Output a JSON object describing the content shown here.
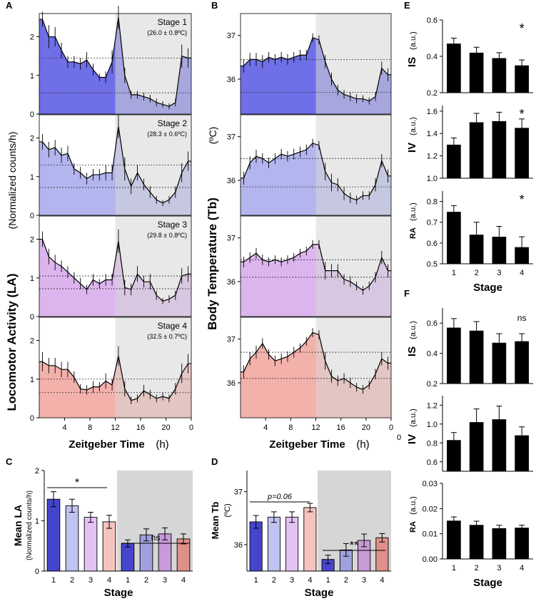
{
  "panel_labels": [
    "A",
    "B",
    "C",
    "D",
    "E",
    "F"
  ],
  "colors": {
    "stages": [
      "#6f6fe8",
      "#b3b5ee",
      "#dcb5ee",
      "#f3b1ab"
    ],
    "bars_c": [
      "#5a5ad8",
      "#c0c2f2",
      "#e3c3f3",
      "#f5c3bd"
    ],
    "bars_dark": [
      "#4545cc",
      "#9fa0dd",
      "#c79ad8",
      "#e0908a"
    ],
    "night": "#d6d6d6",
    "black": "#000000"
  },
  "chart_data": [
    {
      "id": "A",
      "type": "line",
      "title": "Locomotor Activity",
      "ylabel": "Locomotor Activity (LA)",
      "ylabel_units": "(Normalized counts/h)",
      "xlabel": "Zeitgeber Time",
      "xlabel_units": "(h)",
      "xticks": [
        "4",
        "8",
        "12",
        "16",
        "20",
        "0"
      ],
      "ylim": [
        0,
        2.6
      ],
      "yticks": [
        "0",
        "1",
        "2"
      ],
      "night_start": 12,
      "series": [
        {
          "name": "Stage 1",
          "temp": "(26.0 ± 0.8ºC)",
          "means_dotted": [
            1.45,
            0.55
          ],
          "x": [
            0.5,
            1.5,
            2.5,
            3.5,
            4.5,
            5.5,
            6.5,
            7.5,
            8.5,
            9.5,
            10.5,
            11.5,
            12.5,
            13.5,
            14.5,
            15.5,
            16.5,
            17.5,
            18.5,
            19.5,
            20.5,
            21.5,
            22.5,
            23.5
          ],
          "values": [
            2.45,
            2.0,
            2.0,
            1.65,
            1.35,
            1.35,
            1.3,
            1.4,
            1.15,
            0.95,
            0.95,
            1.35,
            2.5,
            1.0,
            0.5,
            0.5,
            0.45,
            0.4,
            0.3,
            0.25,
            0.2,
            0.3,
            1.5,
            1.45
          ],
          "err": [
            0.2,
            0.3,
            0.25,
            0.2,
            0.15,
            0.15,
            0.15,
            0.2,
            0.15,
            0.1,
            0.15,
            0.3,
            0.3,
            0.2,
            0.1,
            0.1,
            0.1,
            0.1,
            0.1,
            0.08,
            0.08,
            0.1,
            0.3,
            0.25
          ]
        },
        {
          "name": "Stage 2",
          "temp": "(28.3 ± 0.6ºC)",
          "means_dotted": [
            1.3,
            0.72
          ],
          "x": [
            0.5,
            1.5,
            2.5,
            3.5,
            4.5,
            5.5,
            6.5,
            7.5,
            8.5,
            9.5,
            10.5,
            11.5,
            12.5,
            13.5,
            14.5,
            15.5,
            16.5,
            17.5,
            18.5,
            19.5,
            20.5,
            21.5,
            22.5,
            23.5
          ],
          "values": [
            1.9,
            1.7,
            1.75,
            1.55,
            1.6,
            1.2,
            1.1,
            0.95,
            1.05,
            1.05,
            1.1,
            1.1,
            2.3,
            1.2,
            0.75,
            1.1,
            0.8,
            0.6,
            0.4,
            0.32,
            0.4,
            0.6,
            1.1,
            1.4
          ],
          "err": [
            0.2,
            0.2,
            0.2,
            0.2,
            0.2,
            0.15,
            0.15,
            0.15,
            0.15,
            0.15,
            0.2,
            0.2,
            0.3,
            0.3,
            0.2,
            0.2,
            0.15,
            0.15,
            0.1,
            0.08,
            0.1,
            0.15,
            0.25,
            0.25
          ]
        },
        {
          "name": "Stage 3",
          "temp": "(29.8 ± 0.8ºC)",
          "means_dotted": [
            1.05,
            0.72
          ],
          "x": [
            0.5,
            1.5,
            2.5,
            3.5,
            4.5,
            5.5,
            6.5,
            7.5,
            8.5,
            9.5,
            10.5,
            11.5,
            12.5,
            13.5,
            14.5,
            15.5,
            16.5,
            17.5,
            18.5,
            19.5,
            20.5,
            21.5,
            22.5,
            23.5
          ],
          "values": [
            2.0,
            1.55,
            1.4,
            1.3,
            1.15,
            1.0,
            0.85,
            0.7,
            0.95,
            0.85,
            0.95,
            0.95,
            1.95,
            0.75,
            0.7,
            1.1,
            0.9,
            0.9,
            0.55,
            0.4,
            0.45,
            0.55,
            1.05,
            1.1
          ],
          "err": [
            0.2,
            0.2,
            0.2,
            0.15,
            0.15,
            0.15,
            0.15,
            0.12,
            0.15,
            0.12,
            0.15,
            0.15,
            0.3,
            0.2,
            0.15,
            0.2,
            0.15,
            0.2,
            0.12,
            0.08,
            0.1,
            0.12,
            0.2,
            0.2
          ]
        },
        {
          "name": "Stage 4",
          "temp": "(32.5 ± 0.7ºC)",
          "means_dotted": [
            1.0,
            0.65
          ],
          "x": [
            0.5,
            1.5,
            2.5,
            3.5,
            4.5,
            5.5,
            6.5,
            7.5,
            8.5,
            9.5,
            10.5,
            11.5,
            12.5,
            13.5,
            14.5,
            15.5,
            16.5,
            17.5,
            18.5,
            19.5,
            20.5,
            21.5,
            22.5,
            23.5
          ],
          "values": [
            1.45,
            1.35,
            1.35,
            1.25,
            1.25,
            1.05,
            0.75,
            0.72,
            0.8,
            0.8,
            0.95,
            0.85,
            1.6,
            0.75,
            0.45,
            0.5,
            0.7,
            0.6,
            0.5,
            0.55,
            0.5,
            0.75,
            1.15,
            1.4
          ],
          "err": [
            0.25,
            0.2,
            0.2,
            0.2,
            0.2,
            0.15,
            0.12,
            0.12,
            0.15,
            0.12,
            0.2,
            0.15,
            0.25,
            0.2,
            0.1,
            0.1,
            0.15,
            0.12,
            0.1,
            0.1,
            0.1,
            0.15,
            0.25,
            0.25
          ]
        }
      ]
    },
    {
      "id": "B",
      "type": "line",
      "title": "Body Temperature",
      "ylabel": "Body Temperature (Tb)",
      "ylabel_units": "(ºC)",
      "xlabel": "Zeitgeber Time",
      "xlabel_units": "(h)",
      "xticks": [
        "4",
        "8",
        "12",
        "16",
        "20",
        "0"
      ],
      "ylim": [
        35.2,
        37.5
      ],
      "yticks": [
        "36",
        "37"
      ],
      "night_start": 12,
      "series": [
        {
          "name": "Stage 1",
          "means_dotted": [
            36.45,
            35.7
          ],
          "x": [
            0.5,
            1.5,
            2.5,
            3.5,
            4.5,
            5.5,
            6.5,
            7.5,
            8.5,
            9.5,
            10.5,
            11.5,
            12.5,
            13.5,
            14.5,
            15.5,
            16.5,
            17.5,
            18.5,
            19.5,
            20.5,
            21.5,
            22.5,
            23.5
          ],
          "values": [
            36.3,
            36.45,
            36.45,
            36.4,
            36.5,
            36.45,
            36.5,
            36.45,
            36.5,
            36.55,
            36.55,
            36.95,
            36.9,
            36.4,
            36.0,
            35.75,
            35.65,
            35.6,
            35.55,
            35.55,
            35.5,
            35.6,
            36.25,
            36.1
          ],
          "err": [
            0.15,
            0.15,
            0.15,
            0.15,
            0.12,
            0.12,
            0.12,
            0.12,
            0.12,
            0.12,
            0.12,
            0.1,
            0.1,
            0.15,
            0.15,
            0.12,
            0.1,
            0.1,
            0.1,
            0.08,
            0.08,
            0.1,
            0.15,
            0.15
          ]
        },
        {
          "name": "Stage 2",
          "means_dotted": [
            36.5,
            35.85
          ],
          "x": [
            0.5,
            1.5,
            2.5,
            3.5,
            4.5,
            5.5,
            6.5,
            7.5,
            8.5,
            9.5,
            10.5,
            11.5,
            12.5,
            13.5,
            14.5,
            15.5,
            16.5,
            17.5,
            18.5,
            19.5,
            20.5,
            21.5,
            22.5,
            23.5
          ],
          "values": [
            36.05,
            36.4,
            36.55,
            36.5,
            36.4,
            36.5,
            36.6,
            36.55,
            36.6,
            36.65,
            36.7,
            36.85,
            36.8,
            36.2,
            35.95,
            35.9,
            35.7,
            35.6,
            35.55,
            35.65,
            35.65,
            35.9,
            36.45,
            36.1
          ],
          "err": [
            0.15,
            0.15,
            0.15,
            0.12,
            0.12,
            0.12,
            0.12,
            0.12,
            0.12,
            0.12,
            0.12,
            0.1,
            0.1,
            0.2,
            0.2,
            0.15,
            0.15,
            0.12,
            0.1,
            0.1,
            0.1,
            0.15,
            0.15,
            0.15
          ]
        },
        {
          "name": "Stage 3",
          "means_dotted": [
            36.5,
            36.1
          ],
          "x": [
            0.5,
            1.5,
            2.5,
            3.5,
            4.5,
            5.5,
            6.5,
            7.5,
            8.5,
            9.5,
            10.5,
            11.5,
            12.5,
            13.5,
            14.5,
            15.5,
            16.5,
            17.5,
            18.5,
            19.5,
            20.5,
            21.5,
            22.5,
            23.5
          ],
          "values": [
            36.45,
            36.55,
            36.65,
            36.5,
            36.45,
            36.5,
            36.45,
            36.5,
            36.55,
            36.65,
            36.7,
            36.85,
            36.85,
            36.25,
            36.25,
            36.25,
            36.05,
            36.0,
            35.9,
            35.8,
            35.9,
            36.1,
            36.55,
            36.25
          ],
          "err": [
            0.12,
            0.12,
            0.12,
            0.12,
            0.1,
            0.1,
            0.1,
            0.1,
            0.1,
            0.1,
            0.1,
            0.1,
            0.1,
            0.2,
            0.15,
            0.15,
            0.12,
            0.12,
            0.1,
            0.1,
            0.1,
            0.12,
            0.15,
            0.15
          ]
        },
        {
          "name": "Stage 4",
          "means_dotted": [
            36.7,
            36.1
          ],
          "x": [
            0.5,
            1.5,
            2.5,
            3.5,
            4.5,
            5.5,
            6.5,
            7.5,
            8.5,
            9.5,
            10.5,
            11.5,
            12.5,
            13.5,
            14.5,
            15.5,
            16.5,
            17.5,
            18.5,
            19.5,
            20.5,
            21.5,
            22.5,
            23.5
          ],
          "values": [
            36.25,
            36.55,
            36.7,
            36.9,
            36.65,
            36.5,
            36.55,
            36.6,
            36.7,
            36.8,
            36.95,
            37.15,
            37.1,
            36.5,
            36.15,
            36.05,
            36.1,
            36.0,
            35.9,
            35.85,
            35.95,
            36.2,
            36.55,
            36.45
          ],
          "err": [
            0.15,
            0.15,
            0.15,
            0.12,
            0.12,
            0.12,
            0.12,
            0.12,
            0.12,
            0.1,
            0.1,
            0.1,
            0.1,
            0.2,
            0.15,
            0.12,
            0.12,
            0.12,
            0.1,
            0.1,
            0.1,
            0.12,
            0.15,
            0.15
          ]
        }
      ]
    },
    {
      "id": "C",
      "type": "bar",
      "ylabel": "Mean LA",
      "ylabel_units": "(Normalized counts/h)",
      "xlabel": "Stage",
      "categories": [
        "1",
        "2",
        "3",
        "4",
        "1",
        "2",
        "3",
        "4"
      ],
      "values": [
        1.43,
        1.3,
        1.07,
        0.98,
        0.55,
        0.72,
        0.74,
        0.64
      ],
      "err": [
        0.15,
        0.13,
        0.1,
        0.13,
        0.07,
        0.12,
        0.12,
        0.1
      ],
      "ylim": [
        0,
        2.0
      ],
      "yticks": [
        "0",
        "1",
        "2"
      ],
      "annotations": [
        "*",
        "ns"
      ]
    },
    {
      "id": "D",
      "type": "bar",
      "ylabel": "Mean Tb",
      "ylabel_units": "(ºC)",
      "xlabel": "Stage",
      "categories": [
        "1",
        "2",
        "3",
        "4",
        "1",
        "2",
        "3",
        "4"
      ],
      "values": [
        36.43,
        36.52,
        36.52,
        36.7,
        35.72,
        35.9,
        36.08,
        36.13
      ],
      "err": [
        0.12,
        0.1,
        0.1,
        0.08,
        0.08,
        0.12,
        0.12,
        0.08
      ],
      "ylim": [
        35.5,
        37.4
      ],
      "yticks": [
        "36",
        "37"
      ],
      "annotations": [
        "p=0.06",
        "**"
      ]
    },
    {
      "id": "E",
      "type": "bar",
      "xlabel": "Stage",
      "categories": [
        "1",
        "2",
        "3",
        "4"
      ],
      "subplots": [
        {
          "label": "IS",
          "units": "(a.u.)",
          "ylim": [
            0.2,
            0.6
          ],
          "yticks": [
            "0.2",
            "0.4",
            "0.6"
          ],
          "values": [
            0.47,
            0.42,
            0.39,
            0.35
          ],
          "err": [
            0.03,
            0.03,
            0.03,
            0.03
          ],
          "annotation": "*"
        },
        {
          "label": "IV",
          "units": "(a.u.)",
          "ylim": [
            1.0,
            1.65
          ],
          "yticks": [
            "1.0",
            "1.2",
            "1.4",
            "1.6"
          ],
          "values": [
            1.3,
            1.5,
            1.51,
            1.45
          ],
          "err": [
            0.06,
            0.08,
            0.08,
            0.08
          ],
          "annotation": "*"
        },
        {
          "label": "RA",
          "units": "(a.u.)",
          "ylim": [
            0.5,
            0.85
          ],
          "yticks": [
            "0.5",
            "0.6",
            "0.7",
            "0.8"
          ],
          "values": [
            0.75,
            0.64,
            0.63,
            0.58
          ],
          "err": [
            0.03,
            0.06,
            0.05,
            0.05
          ],
          "annotation": "*"
        }
      ]
    },
    {
      "id": "F",
      "type": "bar",
      "xlabel": "Stage",
      "categories": [
        "1",
        "2",
        "3",
        "4"
      ],
      "subplots": [
        {
          "label": "IS",
          "units": "(a.u.)",
          "ylim": [
            0.2,
            0.7
          ],
          "yticks": [
            "0.2",
            "0.4",
            "0.6"
          ],
          "values": [
            0.57,
            0.55,
            0.47,
            0.48
          ],
          "err": [
            0.06,
            0.06,
            0.06,
            0.05
          ],
          "annotation": "ns"
        },
        {
          "label": "IV",
          "units": "(a.u.)",
          "ylim": [
            0.5,
            1.3
          ],
          "yticks": [
            "0.6",
            "0.8",
            "1.0",
            "1.2"
          ],
          "values": [
            0.83,
            1.02,
            1.05,
            0.88
          ],
          "err": [
            0.08,
            0.14,
            0.14,
            0.09
          ],
          "annotation": ""
        },
        {
          "label": "RA",
          "units": "(a.u.)",
          "ylim": [
            0.0,
            0.03
          ],
          "yticks": [
            "0.00",
            "0.01",
            "0.02",
            "0.03"
          ],
          "values": [
            0.0152,
            0.0135,
            0.0122,
            0.0124
          ],
          "err": [
            0.0015,
            0.0015,
            0.0012,
            0.001
          ],
          "annotation": ""
        }
      ]
    }
  ],
  "stray_tick": "0"
}
